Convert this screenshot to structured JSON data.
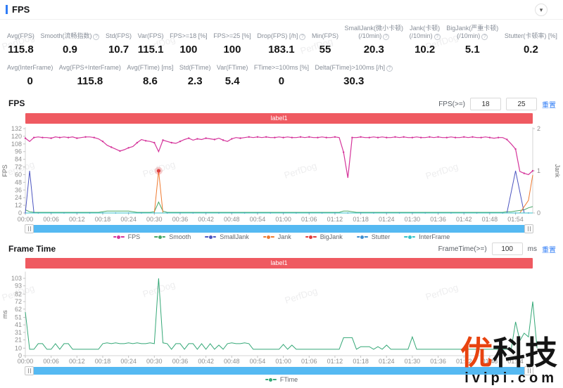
{
  "header": {
    "title": "FPS",
    "collapse_icon": "▾"
  },
  "stats_row1": [
    {
      "label": "Avg(FPS)",
      "value": "115.8",
      "info": false
    },
    {
      "label": "Smooth(流畅指数)",
      "value": "0.9",
      "info": true
    },
    {
      "label": "Std(FPS)",
      "value": "10.7",
      "info": false
    },
    {
      "label": "Var(FPS)",
      "value": "115.1",
      "info": false
    },
    {
      "label": "FPS>=18 [%]",
      "value": "100",
      "info": false
    },
    {
      "label": "FPS>=25 [%]",
      "value": "100",
      "info": false
    },
    {
      "label": "Drop(FPS) [/h]",
      "value": "183.1",
      "info": true
    },
    {
      "label": "Min(FPS)",
      "value": "55",
      "info": false
    },
    {
      "label": "SmallJank(微小卡顿)",
      "label2": "(/10min)",
      "value": "20.3",
      "info": true
    },
    {
      "label": "Jank(卡顿)",
      "label2": "(/10min)",
      "value": "10.2",
      "info": true
    },
    {
      "label": "BigJank(严重卡顿)",
      "label2": "(/10min)",
      "value": "5.1",
      "info": true
    },
    {
      "label": "Stutter(卡顿率) [%]",
      "value": "0.2",
      "info": false
    }
  ],
  "stats_row2": [
    {
      "label": "Avg(InterFrame)",
      "value": "0",
      "info": false
    },
    {
      "label": "Avg(FPS+InterFrame)",
      "value": "115.8",
      "info": false
    },
    {
      "label": "Avg(FTime) [ms]",
      "value": "8.6",
      "info": false
    },
    {
      "label": "Std(FTime)",
      "value": "2.3",
      "info": false
    },
    {
      "label": "Var(FTime)",
      "value": "5.4",
      "info": false
    },
    {
      "label": "FTime>=100ms [%]",
      "value": "0",
      "info": false
    },
    {
      "label": "Delta(FTime)>100ms [/h]",
      "value": "30.3",
      "info": true
    }
  ],
  "fps_section": {
    "title": "FPS",
    "threshold_label": "FPS(>=)",
    "threshold1": "18",
    "threshold2": "25",
    "reset_label": "重置",
    "banner": "label1"
  },
  "ft_section": {
    "title": "Frame Time",
    "threshold_label": "FrameTime(>=)",
    "threshold": "100",
    "unit": "ms",
    "reset_label": "重置",
    "banner": "label1"
  },
  "watermark_text": "PerfDog",
  "logo": {
    "red": "优",
    "black": "科技",
    "domain": "ivipi.com"
  },
  "chart_data": [
    {
      "type": "line",
      "title": "FPS",
      "ylabel": "FPS",
      "ylabel_right": "Jank",
      "ylim": [
        0,
        132
      ],
      "ylim_right": [
        0,
        2
      ],
      "yticks": [
        0,
        12,
        24,
        36,
        48,
        60,
        72,
        84,
        96,
        108,
        120,
        132
      ],
      "yticks_right": [
        0,
        1,
        2
      ],
      "x_step_seconds": 1,
      "x_range_seconds": [
        0,
        118
      ],
      "xtick_interval_seconds": 6,
      "xtick_labels": [
        "00:00",
        "00:06",
        "00:12",
        "00:18",
        "00:24",
        "00:30",
        "00:36",
        "00:42",
        "00:48",
        "00:54",
        "01:00",
        "01:06",
        "01:12",
        "01:18",
        "01:24",
        "01:30",
        "01:36",
        "01:42",
        "01:48",
        "01:54"
      ],
      "grid": false,
      "legend_position": "bottom",
      "series": [
        {
          "name": "FPS",
          "color": "#d5359b",
          "axis": "left",
          "markers": true,
          "values": [
            117,
            112,
            118,
            119,
            118,
            118,
            117,
            119,
            118,
            119,
            118,
            119,
            117,
            118,
            119,
            119,
            118,
            116,
            112,
            106,
            103,
            100,
            97,
            99,
            102,
            104,
            110,
            115,
            113,
            112,
            110,
            96,
            114,
            112,
            110,
            109,
            112,
            115,
            117,
            114,
            116,
            115,
            117,
            116,
            115,
            117,
            114,
            112,
            116,
            118,
            117,
            118,
            119,
            118,
            119,
            118,
            119,
            118,
            118,
            119,
            118,
            119,
            118,
            118,
            119,
            118,
            119,
            118,
            118,
            119,
            118,
            118,
            119,
            118,
            95,
            55,
            118,
            118,
            119,
            118,
            118,
            119,
            118,
            119,
            118,
            118,
            119,
            118,
            119,
            118,
            118,
            119,
            118,
            118,
            119,
            118,
            119,
            118,
            118,
            119,
            118,
            118,
            119,
            118,
            119,
            118,
            118,
            119,
            118,
            117,
            118,
            118,
            115,
            108,
            100,
            65,
            62,
            60,
            66
          ]
        },
        {
          "name": "Smooth",
          "color": "#47a867",
          "axis": "left",
          "values": [
            5,
            2,
            1,
            1,
            1,
            1,
            1,
            1,
            1,
            1,
            1,
            1,
            1,
            1,
            1,
            1,
            1,
            1,
            2,
            3,
            3,
            3,
            3,
            3,
            3,
            2,
            1,
            1,
            1,
            1,
            2,
            17,
            3,
            1,
            1,
            1,
            1,
            1,
            1,
            1,
            1,
            1,
            1,
            1,
            1,
            1,
            1,
            1,
            1,
            1,
            1,
            1,
            1,
            1,
            1,
            1,
            1,
            1,
            1,
            1,
            1,
            1,
            1,
            1,
            1,
            1,
            1,
            1,
            1,
            1,
            1,
            1,
            1,
            1,
            3,
            3,
            2,
            1,
            1,
            1,
            1,
            1,
            1,
            1,
            1,
            1,
            1,
            1,
            1,
            1,
            1,
            1,
            1,
            1,
            1,
            1,
            1,
            1,
            1,
            1,
            1,
            1,
            1,
            1,
            1,
            1,
            1,
            1,
            1,
            1,
            1,
            1,
            2,
            2,
            3,
            4,
            5,
            8,
            10
          ]
        },
        {
          "name": "SmallJank",
          "color": "#4c55c0",
          "axis": "right",
          "points": [
            [
              0,
              0
            ],
            [
              1,
              1
            ],
            [
              2,
              0
            ],
            [
              112,
              0
            ],
            [
              114,
              1
            ],
            [
              116,
              0
            ],
            [
              118,
              0
            ]
          ]
        },
        {
          "name": "Jank",
          "color": "#ee7a30",
          "axis": "right",
          "points": [
            [
              0,
              0
            ],
            [
              30,
              0
            ],
            [
              31,
              1
            ],
            [
              32,
              0
            ],
            [
              115,
              0
            ],
            [
              117,
              0.3
            ],
            [
              118,
              0.9
            ]
          ]
        },
        {
          "name": "BigJank",
          "color": "#e23c3c",
          "axis": "right",
          "marker_points": [
            [
              31,
              1
            ]
          ]
        },
        {
          "name": "Stutter",
          "color": "#3e8ed0",
          "axis": "right",
          "baseline_markers": true,
          "points": [
            [
              0,
              0
            ],
            [
              118,
              0
            ]
          ]
        },
        {
          "name": "InterFrame",
          "color": "#35c3c8",
          "axis": "right",
          "points": [
            [
              0,
              0
            ],
            [
              118,
              0
            ]
          ]
        }
      ]
    },
    {
      "type": "line",
      "title": "Frame Time",
      "ylabel": "ms",
      "ylim": [
        0,
        110
      ],
      "yticks": [
        0,
        10,
        21,
        31,
        41,
        51,
        62,
        72,
        82,
        93,
        103
      ],
      "x_step_seconds": 1,
      "x_range_seconds": [
        0,
        118
      ],
      "xtick_interval_seconds": 6,
      "xtick_labels": [
        "00:00",
        "00:06",
        "00:12",
        "00:18",
        "00:24",
        "00:30",
        "00:36",
        "00:42",
        "00:48",
        "00:54",
        "01:00",
        "01:06",
        "01:12",
        "01:18",
        "01:24",
        "01:30",
        "01:36",
        "01:42",
        "01:48",
        "01:54"
      ],
      "grid": false,
      "legend_position": "bottom",
      "series": [
        {
          "name": "FTime",
          "color": "#35a877",
          "axis": "left",
          "values": [
            58,
            8.5,
            8.5,
            16,
            16,
            8.5,
            8.5,
            16,
            8.5,
            16,
            16,
            8.5,
            8.5,
            8.5,
            8.5,
            8.5,
            8.5,
            8.5,
            16,
            17,
            16,
            17,
            16,
            16,
            17,
            16,
            17,
            16,
            16,
            17,
            16,
            103,
            17,
            16,
            8.5,
            16,
            16,
            8.5,
            16,
            16,
            8.5,
            16,
            8.5,
            16,
            8.5,
            14,
            8.5,
            16,
            17,
            16,
            16,
            17,
            16,
            8.5,
            8.5,
            8.5,
            8.5,
            8.5,
            8.5,
            8.5,
            15,
            8.5,
            14,
            8.5,
            8.5,
            8.5,
            8.5,
            8.5,
            8.5,
            8.5,
            8.5,
            8.5,
            8.5,
            8.5,
            24,
            24,
            24,
            8.5,
            12,
            12,
            12,
            8.5,
            12,
            8.5,
            14,
            8.5,
            8.5,
            8.5,
            8.5,
            8.5,
            25,
            8.5,
            8.5,
            8.5,
            8.5,
            8.5,
            8.5,
            8.5,
            8.5,
            8.5,
            8.5,
            8.5,
            8.5,
            8.5,
            8.5,
            8.5,
            8.5,
            8.5,
            8.5,
            8.5,
            8.5,
            8.5,
            8.5,
            8.5,
            45,
            20,
            30,
            25,
            72,
            10
          ]
        }
      ]
    }
  ]
}
